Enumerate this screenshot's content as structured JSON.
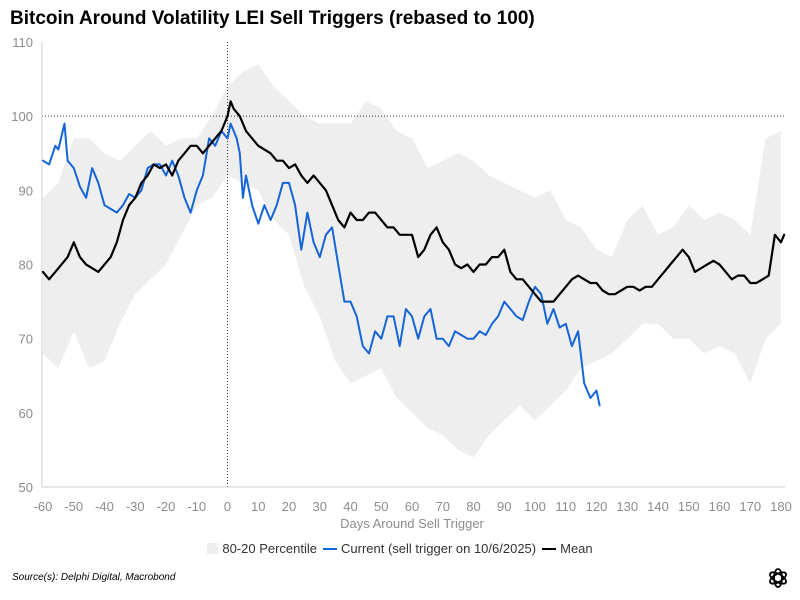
{
  "chart_data": {
    "type": "line",
    "title": "Bitcoin Around Volatility LEI Sell Triggers (rebased to 100)",
    "xlabel": "Days Around Sell Trigger",
    "ylabel": "",
    "xlim": [
      -60,
      181
    ],
    "ylim": [
      50,
      110
    ],
    "x_ticks": [
      -60,
      -50,
      -40,
      -30,
      -20,
      -10,
      0,
      10,
      20,
      30,
      40,
      50,
      60,
      70,
      80,
      90,
      100,
      110,
      120,
      130,
      140,
      150,
      160,
      170,
      180
    ],
    "y_ticks": [
      50,
      60,
      70,
      80,
      90,
      100,
      110
    ],
    "reference_lines": {
      "x": 0,
      "y": 100
    },
    "legend": [
      "80-20 Percentile",
      "Current (sell trigger on 10/6/2025)",
      "Mean"
    ],
    "band": {
      "name": "80-20 Percentile",
      "x": [
        -60,
        -55,
        -50,
        -45,
        -40,
        -35,
        -30,
        -25,
        -20,
        -15,
        -10,
        -5,
        0,
        5,
        10,
        15,
        20,
        25,
        30,
        35,
        40,
        45,
        50,
        55,
        60,
        65,
        70,
        75,
        80,
        85,
        90,
        95,
        100,
        105,
        110,
        115,
        120,
        125,
        130,
        135,
        140,
        145,
        150,
        155,
        160,
        165,
        170,
        175,
        180
      ],
      "upper": [
        89,
        91,
        97,
        97,
        95,
        94,
        96,
        98,
        96,
        97,
        97,
        100,
        104,
        106,
        107,
        104,
        102,
        100,
        99,
        99,
        99,
        102,
        101,
        98,
        97,
        93,
        94,
        95,
        94,
        92,
        91,
        90,
        89,
        90,
        86,
        85,
        82,
        81,
        86,
        88,
        84,
        85,
        88,
        86,
        87,
        86,
        84,
        97,
        98
      ],
      "lower": [
        68,
        66,
        71,
        66,
        67,
        72,
        76,
        78,
        80,
        84,
        88,
        89,
        92,
        91,
        90,
        86,
        84,
        77,
        73,
        67,
        64,
        65,
        66,
        62,
        60,
        58,
        57,
        55,
        54,
        57,
        59,
        61,
        59,
        61,
        63,
        66,
        67,
        68,
        70,
        72,
        72,
        70,
        70,
        68,
        69,
        68,
        64,
        70,
        72
      ]
    },
    "series": [
      {
        "name": "Current (sell trigger on 10/6/2025)",
        "color": "#1565d8",
        "x": [
          -60,
          -58,
          -56,
          -55,
          -53,
          -52,
          -50,
          -48,
          -46,
          -44,
          -42,
          -40,
          -38,
          -36,
          -34,
          -32,
          -30,
          -28,
          -26,
          -24,
          -22,
          -20,
          -18,
          -16,
          -14,
          -12,
          -10,
          -8,
          -6,
          -4,
          -2,
          0,
          1,
          2,
          3,
          4,
          5,
          6,
          8,
          10,
          12,
          14,
          16,
          18,
          20,
          22,
          24,
          26,
          28,
          30,
          32,
          34,
          36,
          38,
          40,
          42,
          44,
          46,
          48,
          50,
          52,
          54,
          56,
          58,
          60,
          62,
          64,
          66,
          68,
          70,
          72,
          74,
          76,
          78,
          80,
          82,
          84,
          86,
          88,
          90,
          92,
          94,
          96,
          98,
          100,
          102,
          104,
          106,
          108,
          110,
          112,
          114,
          116,
          118,
          120,
          121
        ],
        "values": [
          94,
          93.5,
          96,
          95.5,
          99,
          94,
          93,
          90.5,
          89,
          93,
          91,
          88,
          87.5,
          87,
          88,
          89.5,
          89,
          90,
          93,
          93.5,
          93.5,
          92,
          94,
          92,
          89,
          87,
          90,
          92,
          97,
          96,
          98,
          97,
          99,
          98,
          97,
          95,
          89,
          92,
          88,
          85.5,
          88,
          86,
          88,
          91,
          91,
          88,
          82,
          87,
          83,
          81,
          84,
          85,
          80,
          75,
          75,
          73,
          69,
          68,
          71,
          70,
          73,
          73,
          69,
          74,
          73,
          70,
          73,
          74,
          70,
          70,
          69,
          71,
          70.5,
          70,
          70,
          71,
          70.5,
          72,
          73,
          75,
          74,
          73,
          72.5,
          75,
          77,
          76,
          72,
          74,
          71.5,
          72,
          69,
          71,
          64,
          62,
          63,
          61
        ]
      },
      {
        "name": "Mean",
        "color": "#000000",
        "x": [
          -60,
          -58,
          -56,
          -54,
          -52,
          -50,
          -48,
          -46,
          -44,
          -42,
          -40,
          -38,
          -36,
          -34,
          -32,
          -30,
          -28,
          -26,
          -24,
          -22,
          -20,
          -18,
          -16,
          -14,
          -12,
          -10,
          -8,
          -6,
          -4,
          -2,
          0,
          1,
          2,
          4,
          6,
          8,
          10,
          12,
          14,
          16,
          18,
          20,
          22,
          24,
          26,
          28,
          30,
          32,
          34,
          36,
          38,
          40,
          42,
          44,
          46,
          48,
          50,
          52,
          54,
          56,
          58,
          60,
          62,
          64,
          66,
          68,
          70,
          72,
          74,
          76,
          78,
          80,
          82,
          84,
          86,
          88,
          90,
          92,
          94,
          96,
          98,
          100,
          102,
          104,
          106,
          108,
          110,
          112,
          114,
          116,
          118,
          120,
          122,
          124,
          126,
          128,
          130,
          132,
          134,
          136,
          138,
          140,
          142,
          144,
          146,
          148,
          150,
          152,
          154,
          156,
          158,
          160,
          162,
          164,
          166,
          168,
          170,
          172,
          174,
          176,
          178,
          180,
          181
        ],
        "values": [
          79,
          78,
          79,
          80,
          81,
          83,
          81,
          80,
          79.5,
          79,
          80,
          81,
          83,
          86,
          88,
          89,
          91,
          92,
          93.5,
          93,
          93.5,
          92,
          94,
          95,
          96,
          96,
          95,
          96,
          97,
          98,
          100,
          102,
          101,
          100,
          98,
          97,
          96,
          95.5,
          95,
          94,
          94,
          93,
          93.5,
          92,
          91,
          92,
          91,
          90,
          88,
          86,
          85,
          87,
          86,
          86,
          87,
          87,
          86,
          85,
          85,
          84,
          84,
          84,
          81,
          82,
          84,
          85,
          83,
          82,
          80,
          79.5,
          80,
          79,
          80,
          80,
          81,
          81,
          82,
          79,
          78,
          78,
          77,
          76,
          75,
          75,
          75,
          76,
          77,
          78,
          78.5,
          78,
          77.5,
          77.5,
          76.5,
          76,
          76,
          76.5,
          77,
          77,
          76.5,
          77,
          77,
          78,
          79,
          80,
          81,
          82,
          81,
          79,
          79.5,
          80,
          80.5,
          80,
          79,
          78,
          78.5,
          78.5,
          77.5,
          77.5,
          78,
          78.5,
          84,
          83,
          84
        ]
      }
    ]
  },
  "source": "Source(s): Delphi Digital, Macrobond",
  "colors": {
    "band": "#eeeeee",
    "current": "#1565d8",
    "mean": "#000000",
    "axis_text": "#8c8c8c"
  },
  "logo_icon": "delphi-logo-icon"
}
